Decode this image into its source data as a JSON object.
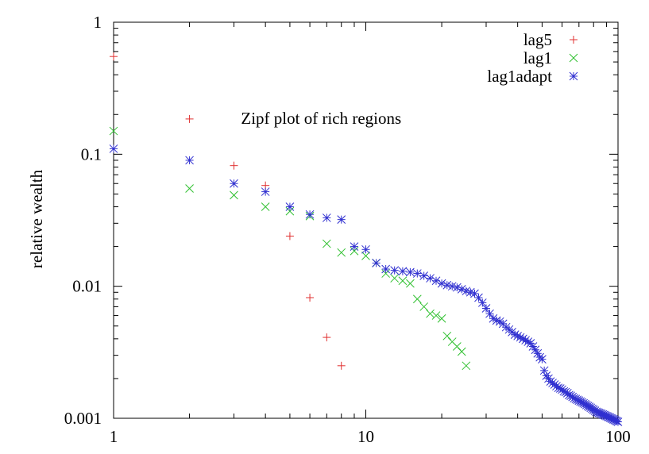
{
  "chart_data": {
    "type": "scatter",
    "ylabel": "relative wealth",
    "xlabel": "",
    "x_scale": "log",
    "y_scale": "log",
    "xlim": [
      1,
      100
    ],
    "ylim": [
      0.001,
      1
    ],
    "x_ticks": [
      {
        "value": 1,
        "label": "1"
      },
      {
        "value": 10,
        "label": "10"
      },
      {
        "value": 100,
        "label": "100"
      }
    ],
    "y_ticks": [
      {
        "value": 0.001,
        "label": "0.001"
      },
      {
        "value": 0.01,
        "label": "0.01"
      },
      {
        "value": 0.1,
        "label": "0.1"
      },
      {
        "value": 1,
        "label": "1"
      }
    ],
    "grid": false,
    "legend_position": "top-right",
    "annotation": {
      "text": "Zipf plot of rich regions",
      "x": 3.2,
      "y": 0.17
    },
    "series": [
      {
        "name": "lag5",
        "marker": "plus",
        "color": "#e03030",
        "points": [
          [
            1,
            0.55
          ],
          [
            2,
            0.185
          ],
          [
            3,
            0.082
          ],
          [
            4,
            0.058
          ],
          [
            5,
            0.024
          ],
          [
            6,
            0.0082
          ],
          [
            7,
            0.0041
          ],
          [
            8,
            0.0025
          ]
        ]
      },
      {
        "name": "lag1",
        "marker": "cross",
        "color": "#30c030",
        "points": [
          [
            1,
            0.15
          ],
          [
            2,
            0.055
          ],
          [
            3,
            0.049
          ],
          [
            4,
            0.04
          ],
          [
            5,
            0.037
          ],
          [
            6,
            0.034
          ],
          [
            7,
            0.021
          ],
          [
            8,
            0.018
          ],
          [
            9,
            0.0185
          ],
          [
            10,
            0.017
          ],
          [
            11,
            0.015
          ],
          [
            12,
            0.0125
          ],
          [
            13,
            0.0115
          ],
          [
            14,
            0.011
          ],
          [
            15,
            0.0105
          ],
          [
            16,
            0.008
          ],
          [
            17,
            0.007
          ],
          [
            18,
            0.0062
          ],
          [
            19,
            0.006
          ],
          [
            20,
            0.0057
          ],
          [
            21,
            0.0042
          ],
          [
            22,
            0.0038
          ],
          [
            23,
            0.0035
          ],
          [
            24,
            0.0032
          ],
          [
            25,
            0.0025
          ]
        ]
      },
      {
        "name": "lag1adapt",
        "marker": "star",
        "color": "#3030d0",
        "points": [
          [
            1,
            0.11
          ],
          [
            2,
            0.09
          ],
          [
            3,
            0.06
          ],
          [
            4,
            0.052
          ],
          [
            5,
            0.04
          ],
          [
            6,
            0.035
          ],
          [
            7,
            0.033
          ],
          [
            8,
            0.032
          ],
          [
            9,
            0.02
          ],
          [
            10,
            0.019
          ],
          [
            11,
            0.015
          ],
          [
            12,
            0.0135
          ],
          [
            13,
            0.0132
          ],
          [
            14,
            0.013
          ],
          [
            15,
            0.0128
          ],
          [
            16,
            0.0125
          ],
          [
            17,
            0.012
          ],
          [
            18,
            0.0115
          ],
          [
            19,
            0.011
          ],
          [
            20,
            0.0105
          ],
          [
            21,
            0.0102
          ],
          [
            22,
            0.01
          ],
          [
            23,
            0.0098
          ],
          [
            24,
            0.0095
          ],
          [
            25,
            0.0092
          ],
          [
            26,
            0.009
          ],
          [
            27,
            0.0088
          ],
          [
            28,
            0.0082
          ],
          [
            29,
            0.0075
          ],
          [
            30,
            0.0068
          ],
          [
            31,
            0.0062
          ],
          [
            32,
            0.0057
          ],
          [
            33,
            0.0055
          ],
          [
            34,
            0.0054
          ],
          [
            35,
            0.0052
          ],
          [
            36,
            0.0049
          ],
          [
            37,
            0.0047
          ],
          [
            38,
            0.0045
          ],
          [
            39,
            0.0043
          ],
          [
            40,
            0.0042
          ],
          [
            41,
            0.0041
          ],
          [
            42,
            0.004
          ],
          [
            43,
            0.0039
          ],
          [
            44,
            0.0038
          ],
          [
            45,
            0.0037
          ],
          [
            46,
            0.0035
          ],
          [
            47,
            0.0033
          ],
          [
            48,
            0.0031
          ],
          [
            49,
            0.0029
          ],
          [
            50,
            0.0028
          ],
          [
            51,
            0.0023
          ],
          [
            52,
            0.0021
          ],
          [
            53,
            0.002
          ],
          [
            54,
            0.0019
          ],
          [
            55,
            0.00185
          ],
          [
            56,
            0.0018
          ],
          [
            57,
            0.00175
          ],
          [
            58,
            0.0017
          ],
          [
            59,
            0.00168
          ],
          [
            60,
            0.00165
          ],
          [
            61,
            0.0016
          ],
          [
            62,
            0.00158
          ],
          [
            63,
            0.00155
          ],
          [
            64,
            0.0015
          ],
          [
            65,
            0.00148
          ],
          [
            66,
            0.00145
          ],
          [
            67,
            0.00142
          ],
          [
            68,
            0.0014
          ],
          [
            69,
            0.00138
          ],
          [
            70,
            0.00136
          ],
          [
            71,
            0.00134
          ],
          [
            72,
            0.00132
          ],
          [
            73,
            0.0013
          ],
          [
            74,
            0.00128
          ],
          [
            75,
            0.00126
          ],
          [
            76,
            0.00124
          ],
          [
            77,
            0.00122
          ],
          [
            78,
            0.0012
          ],
          [
            79,
            0.00118
          ],
          [
            80,
            0.00116
          ],
          [
            81,
            0.00114
          ],
          [
            82,
            0.00112
          ],
          [
            83,
            0.00111
          ],
          [
            84,
            0.0011
          ],
          [
            85,
            0.00109
          ],
          [
            86,
            0.00108
          ],
          [
            87,
            0.00107
          ],
          [
            88,
            0.00106
          ],
          [
            89,
            0.00105
          ],
          [
            90,
            0.00104
          ],
          [
            91,
            0.00103
          ],
          [
            92,
            0.00102
          ],
          [
            93,
            0.00101
          ],
          [
            94,
            0.001
          ],
          [
            95,
            0.00099
          ],
          [
            96,
            0.00098
          ],
          [
            97,
            0.00097
          ],
          [
            98,
            0.00096
          ],
          [
            99,
            0.00095
          ],
          [
            100,
            0.00094
          ]
        ]
      }
    ]
  }
}
